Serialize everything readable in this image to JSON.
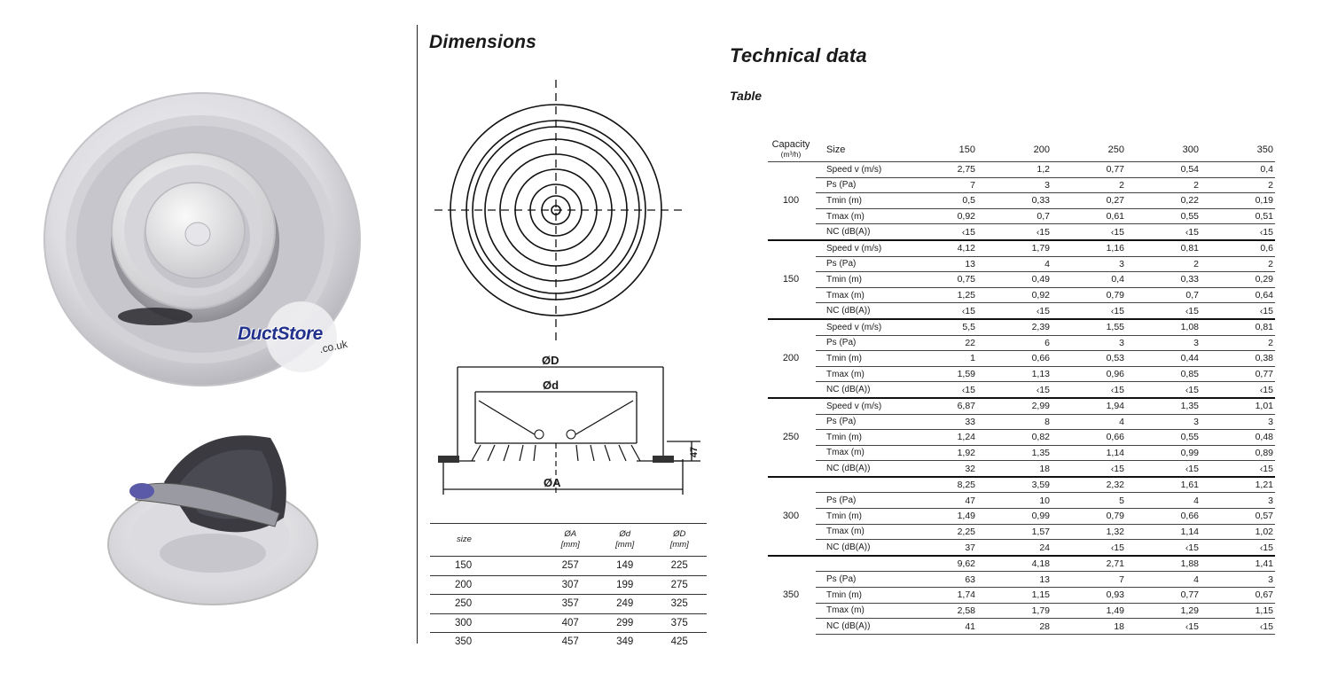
{
  "brand": {
    "name": "DuctStore",
    "suffix": ".co.uk"
  },
  "dimensions": {
    "title": "Dimensions",
    "drawing_labels": {
      "outer_diameter": "ØD",
      "inner_diameter": "Ød",
      "base_diameter": "ØA",
      "height": "47"
    },
    "table": {
      "headers": [
        {
          "label": "size",
          "unit": ""
        },
        {
          "label": "ØA",
          "unit": "[mm]"
        },
        {
          "label": "Ød",
          "unit": "[mm]"
        },
        {
          "label": "ØD",
          "unit": "[mm]"
        }
      ],
      "rows": [
        [
          "150",
          "257",
          "149",
          "225"
        ],
        [
          "200",
          "307",
          "199",
          "275"
        ],
        [
          "250",
          "357",
          "249",
          "325"
        ],
        [
          "300",
          "407",
          "299",
          "375"
        ],
        [
          "350",
          "457",
          "349",
          "425"
        ]
      ]
    }
  },
  "technical": {
    "title": "Technical data",
    "subtitle": "Table",
    "capacity_label": "Capacity",
    "capacity_unit": "(m³/h)",
    "size_label": "Size",
    "sizes": [
      "150",
      "200",
      "250",
      "300",
      "350"
    ],
    "groups": [
      {
        "capacity": "100",
        "rows": [
          {
            "label": "Speed  v (m/s)",
            "values": [
              "2,75",
              "1,2",
              "0,77",
              "0,54",
              "0,4"
            ]
          },
          {
            "label": "Ps (Pa)",
            "values": [
              "7",
              "3",
              "2",
              "2",
              "2"
            ]
          },
          {
            "label": "Tmin (m)",
            "values": [
              "0,5",
              "0,33",
              "0,27",
              "0,22",
              "0,19"
            ]
          },
          {
            "label": "Tmax (m)",
            "values": [
              "0,92",
              "0,7",
              "0,61",
              "0,55",
              "0,51"
            ]
          },
          {
            "label": "NC (dB(A))",
            "values": [
              "‹15",
              "‹15",
              "‹15",
              "‹15",
              "‹15"
            ]
          }
        ]
      },
      {
        "capacity": "150",
        "rows": [
          {
            "label": "Speed   v (m/s)",
            "values": [
              "4,12",
              "1,79",
              "1,16",
              "0,81",
              "0,6"
            ]
          },
          {
            "label": "Ps (Pa)",
            "values": [
              "13",
              "4",
              "3",
              "2",
              "2"
            ]
          },
          {
            "label": "Tmin (m)",
            "values": [
              "0,75",
              "0,49",
              "0,4",
              "0,33",
              "0,29"
            ]
          },
          {
            "label": "Tmax (m)",
            "values": [
              "1,25",
              "0,92",
              "0,79",
              "0,7",
              "0,64"
            ]
          },
          {
            "label": "NC (dB(A))",
            "values": [
              "‹15",
              "‹15",
              "‹15",
              "‹15",
              "‹15"
            ]
          }
        ]
      },
      {
        "capacity": "200",
        "rows": [
          {
            "label": "Speed   v (m/s)",
            "values": [
              "5,5",
              "2,39",
              "1,55",
              "1,08",
              "0,81"
            ]
          },
          {
            "label": "Ps (Pa)",
            "values": [
              "22",
              "6",
              "3",
              "3",
              "2"
            ]
          },
          {
            "label": "Tmin (m)",
            "values": [
              "1",
              "0,66",
              "0,53",
              "0,44",
              "0,38"
            ]
          },
          {
            "label": "Tmax (m)",
            "values": [
              "1,59",
              "1,13",
              "0,96",
              "0,85",
              "0,77"
            ]
          },
          {
            "label": "NC (dB(A))",
            "values": [
              "‹15",
              "‹15",
              "‹15",
              "‹15",
              "‹15"
            ]
          }
        ]
      },
      {
        "capacity": "250",
        "rows": [
          {
            "label": "Speed  v (m/s)",
            "values": [
              "6,87",
              "2,99",
              "1,94",
              "1,35",
              "1,01"
            ]
          },
          {
            "label": "Ps (Pa)",
            "values": [
              "33",
              "8",
              "4",
              "3",
              "3"
            ]
          },
          {
            "label": "Tmin (m)",
            "values": [
              "1,24",
              "0,82",
              "0,66",
              "0,55",
              "0,48"
            ]
          },
          {
            "label": "Tmax (m)",
            "values": [
              "1,92",
              "1,35",
              "1,14",
              "0,99",
              "0,89"
            ]
          },
          {
            "label": "NC (dB(A))",
            "values": [
              "32",
              "18",
              "‹15",
              "‹15",
              "‹15"
            ]
          }
        ]
      },
      {
        "capacity": "300",
        "rows": [
          {
            "label": "",
            "values": [
              "8,25",
              "3,59",
              "2,32",
              "1,61",
              "1,21"
            ]
          },
          {
            "label": "Ps (Pa)",
            "values": [
              "47",
              "10",
              "5",
              "4",
              "3"
            ]
          },
          {
            "label": "Tmin (m)",
            "values": [
              "1,49",
              "0,99",
              "0,79",
              "0,66",
              "0,57"
            ]
          },
          {
            "label": "Tmax (m)",
            "values": [
              "2,25",
              "1,57",
              "1,32",
              "1,14",
              "1,02"
            ]
          },
          {
            "label": "NC (dB(A))",
            "values": [
              "37",
              "24",
              "‹15",
              "‹15",
              "‹15"
            ]
          }
        ]
      },
      {
        "capacity": "350",
        "rows": [
          {
            "label": "",
            "values": [
              "9,62",
              "4,18",
              "2,71",
              "1,88",
              "1,41"
            ]
          },
          {
            "label": "Ps (Pa)",
            "values": [
              "63",
              "13",
              "7",
              "4",
              "3"
            ]
          },
          {
            "label": "Tmin (m)",
            "values": [
              "1,74",
              "1,15",
              "0,93",
              "0,77",
              "0,67"
            ]
          },
          {
            "label": "Tmax (m)",
            "values": [
              "2,58",
              "1,79",
              "1,49",
              "1,29",
              "1,15"
            ]
          },
          {
            "label": "NC (dB(A))",
            "values": [
              "41",
              "28",
              "18",
              "‹15",
              "‹15"
            ]
          }
        ]
      }
    ]
  }
}
